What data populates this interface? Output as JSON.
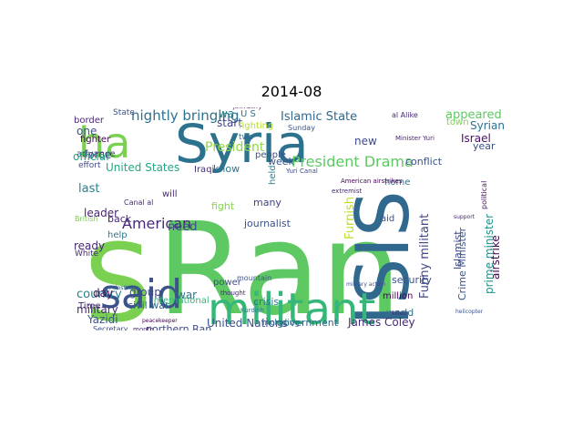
{
  "title": "2014-08",
  "colormap": "viridis",
  "background": "#ffffff",
  "words": [
    {
      "text": "Ran",
      "color": "#5ec962"
    },
    {
      "text": "S",
      "color": "#7ad151"
    },
    {
      "text": "Syria",
      "color": "#2c728e"
    },
    {
      "text": "ISIS",
      "color": "#31688e"
    },
    {
      "text": "militant",
      "color": "#35b779"
    },
    {
      "text": "said",
      "color": "#3b528b"
    },
    {
      "text": "ha",
      "color": "#7ad151"
    },
    {
      "text": "President Drama",
      "color": "#5ec962"
    },
    {
      "text": "American",
      "color": "#482878"
    },
    {
      "text": "Islamic State",
      "color": "#31688e"
    },
    {
      "text": "nightly bringing",
      "color": "#2c728e"
    },
    {
      "text": "President",
      "color": "#90d743"
    },
    {
      "text": "Furnish",
      "color": "#bddf26"
    },
    {
      "text": "United Nations",
      "color": "#3b528b"
    },
    {
      "text": "James Coley",
      "color": "#482878"
    },
    {
      "text": "government",
      "color": "#31688e"
    },
    {
      "text": "northern Ran",
      "color": "#3e4989"
    },
    {
      "text": "Yazidi",
      "color": "#3b528b"
    },
    {
      "text": "military",
      "color": "#472d7b"
    },
    {
      "text": "country",
      "color": "#26828e"
    },
    {
      "text": "leader",
      "color": "#482475"
    },
    {
      "text": "ready",
      "color": "#482878"
    },
    {
      "text": "group",
      "color": "#3e4989"
    },
    {
      "text": "United States",
      "color": "#22a884"
    },
    {
      "text": "force",
      "color": "#3e4989"
    },
    {
      "text": "last",
      "color": "#26828e"
    },
    {
      "text": "one",
      "color": "#3b528b"
    },
    {
      "text": "fighter",
      "color": "#440154"
    },
    {
      "text": "border",
      "color": "#482878"
    },
    {
      "text": "advance",
      "color": "#443983"
    },
    {
      "text": "civil war",
      "color": "#31688e"
    },
    {
      "text": "day",
      "color": "#471164"
    },
    {
      "text": "war",
      "color": "#2a788e"
    },
    {
      "text": "people",
      "color": "#3b528b"
    },
    {
      "text": "fight",
      "color": "#84d44b"
    },
    {
      "text": "need",
      "color": "#3e4989"
    },
    {
      "text": "know",
      "color": "#2a788e"
    },
    {
      "text": "start",
      "color": "#414487"
    },
    {
      "text": "wa",
      "color": "#26828e"
    },
    {
      "text": "U S",
      "color": "#2c728e"
    },
    {
      "text": "Iraqi",
      "color": "#472d7b"
    },
    {
      "text": "appeared",
      "color": "#5ec962"
    },
    {
      "text": "town",
      "color": "#7ad151"
    },
    {
      "text": "new",
      "color": "#3e4989"
    },
    {
      "text": "official",
      "color": "#22a884"
    },
    {
      "text": "conflict",
      "color": "#3b528b"
    },
    {
      "text": "week",
      "color": "#3b528b"
    },
    {
      "text": "Funny militant",
      "color": "#414487"
    },
    {
      "text": "Crime Minister",
      "color": "#3b528b"
    },
    {
      "text": "airstrike",
      "color": "#440154"
    },
    {
      "text": "Islamist",
      "color": "#3e4989"
    },
    {
      "text": "prime minister",
      "color": "#21918c"
    },
    {
      "text": "Israel",
      "color": "#471164"
    },
    {
      "text": "Syrian",
      "color": "#2c728e"
    },
    {
      "text": "year",
      "color": "#3b528b"
    },
    {
      "text": "world",
      "color": "#2c728e"
    },
    {
      "text": "security",
      "color": "#3b528b"
    },
    {
      "text": "crisis",
      "color": "#2a788e"
    },
    {
      "text": "journalist",
      "color": "#3b528b"
    },
    {
      "text": "many",
      "color": "#414487"
    },
    {
      "text": "held",
      "color": "#26828e"
    },
    {
      "text": "international",
      "color": "#35b779"
    },
    {
      "text": "Time",
      "color": "#482878"
    },
    {
      "text": "power",
      "color": "#3e4989"
    },
    {
      "text": "back",
      "color": "#482878"
    },
    {
      "text": "help",
      "color": "#2a788e"
    },
    {
      "text": "home",
      "color": "#2c728e"
    },
    {
      "text": "aid",
      "color": "#3b528b"
    },
    {
      "text": "million",
      "color": "#440154"
    },
    {
      "text": "will",
      "color": "#482878"
    },
    {
      "text": "State",
      "color": "#3b528b"
    },
    {
      "text": "effort",
      "color": "#3e4989"
    },
    {
      "text": "White",
      "color": "#482878"
    },
    {
      "text": "Canal al",
      "color": "#482878"
    },
    {
      "text": "British",
      "color": "#7ad151"
    },
    {
      "text": "fighting",
      "color": "#b5de2b"
    },
    {
      "text": "two",
      "color": "#31688e"
    },
    {
      "text": "John Berry",
      "color": "#440154"
    },
    {
      "text": "al Alike",
      "color": "#482878"
    },
    {
      "text": "Sunday",
      "color": "#3b528b"
    },
    {
      "text": "Yuri Canal",
      "color": "#3e4989"
    },
    {
      "text": "American airstrikes",
      "color": "#440154"
    },
    {
      "text": "extremist",
      "color": "#482878"
    },
    {
      "text": "Minister Yuri",
      "color": "#481f70"
    },
    {
      "text": "mountain",
      "color": "#3b528b"
    },
    {
      "text": "including",
      "color": "#2c728e"
    },
    {
      "text": "Secretary",
      "color": "#3e4989"
    },
    {
      "text": "month",
      "color": "#482878"
    },
    {
      "text": "thought",
      "color": "#482878"
    },
    {
      "text": "Palestinian",
      "color": "#31688e"
    },
    {
      "text": "helicopter",
      "color": "#3b528b"
    },
    {
      "text": "political",
      "color": "#471164"
    },
    {
      "text": "Kurdish",
      "color": "#2a788e"
    },
    {
      "text": "support",
      "color": "#482878"
    },
    {
      "text": "military action",
      "color": "#3b528b"
    },
    {
      "text": "killed",
      "color": "#482878"
    },
    {
      "text": "peacekeeper",
      "color": "#440154"
    }
  ]
}
